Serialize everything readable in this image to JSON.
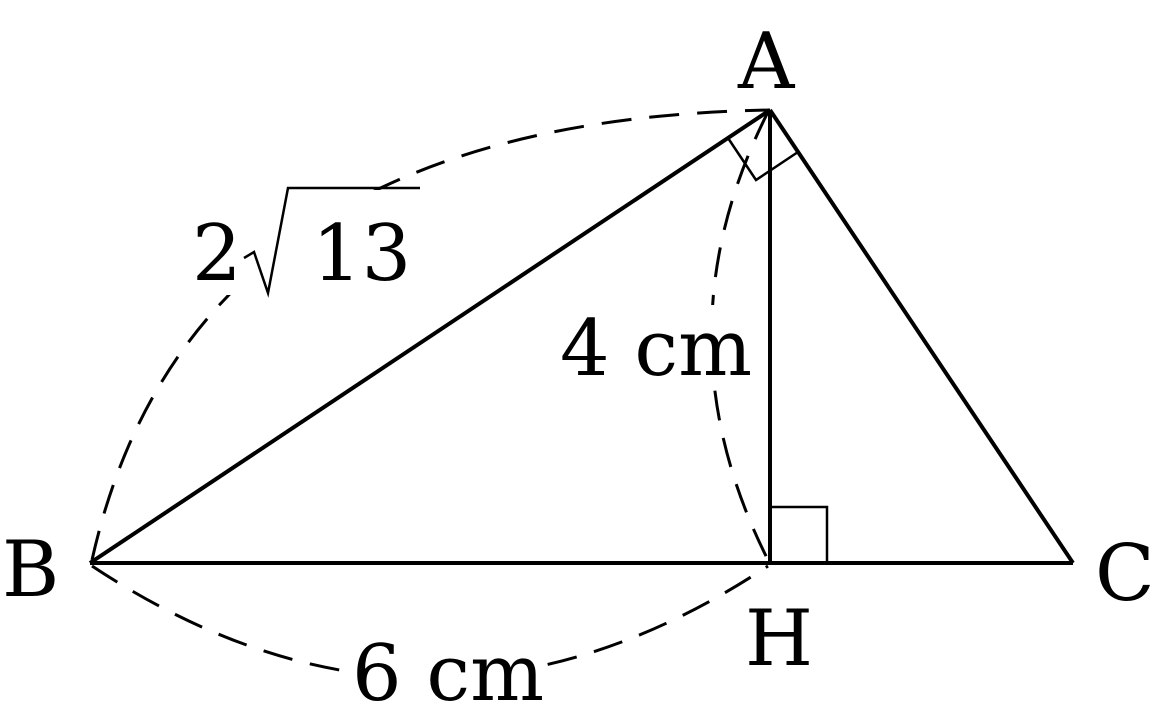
{
  "vertices": {
    "A": "A",
    "B": "B",
    "C": "C",
    "H": "H"
  },
  "labels": {
    "AB": "2√13",
    "AB_coef": "2",
    "AB_radicand": "13",
    "AH": "4 cm",
    "BH": "6 cm"
  },
  "right_angles": [
    "BAC",
    "AHC"
  ],
  "colors": {
    "stroke": "#000000",
    "background": "#ffffff"
  }
}
